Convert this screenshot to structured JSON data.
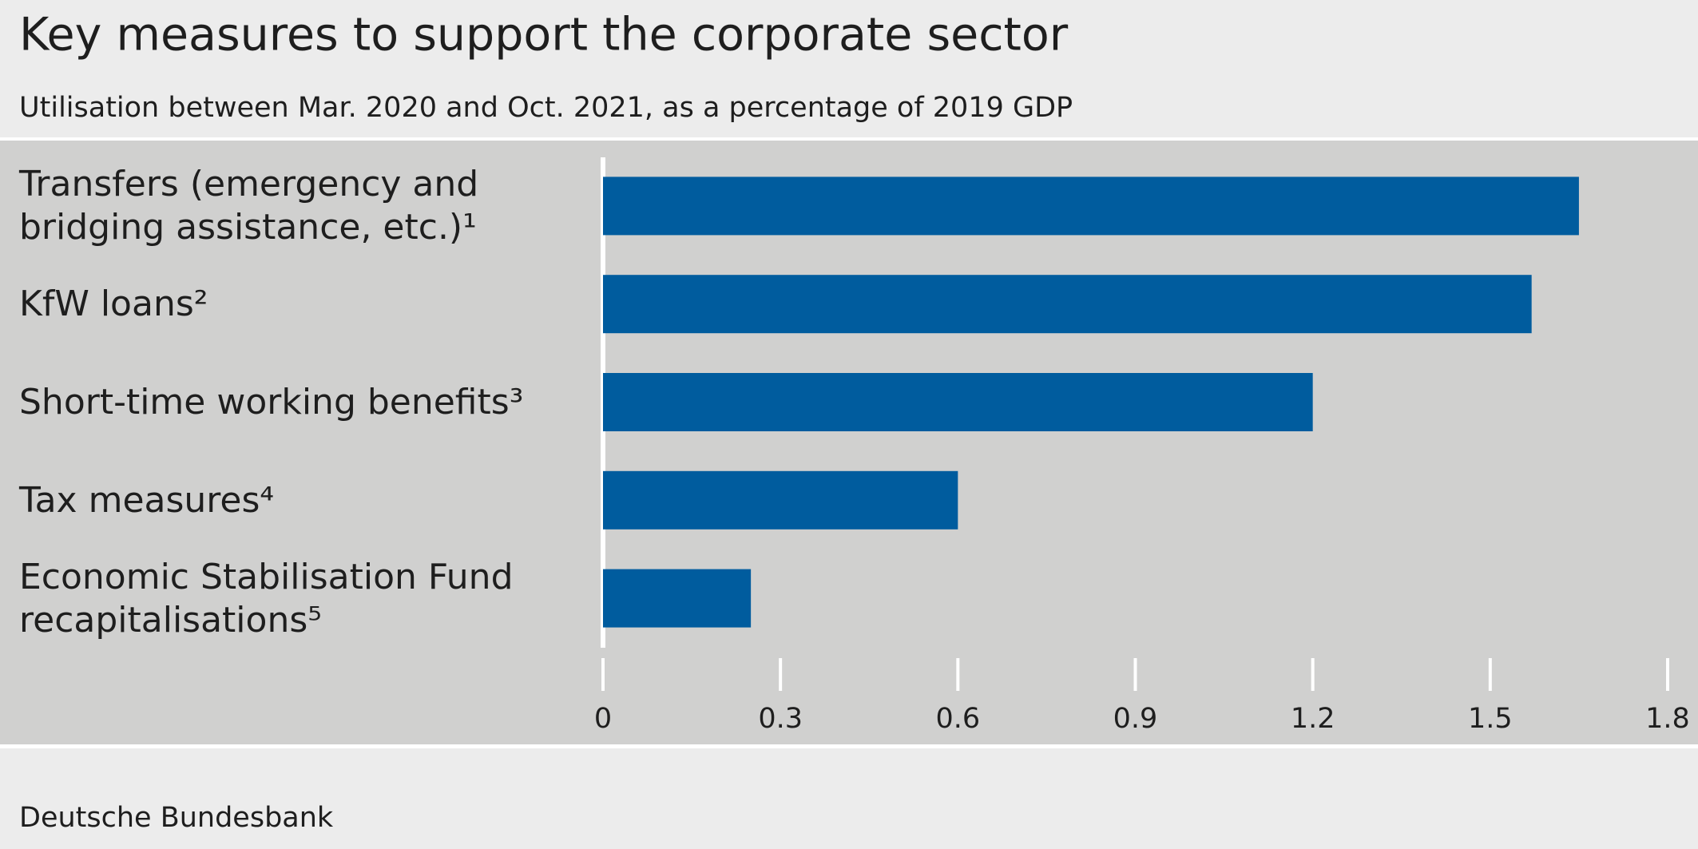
{
  "chart_data": {
    "type": "hbar",
    "title": "Key measures to support the corporate sector",
    "subtitle": "Utilisation between Mar. 2020 and Oct. 2021, as a percentage of 2019 GDP",
    "source": "Deutsche Bundesbank",
    "categories": [
      "Transfers (emergency and bridging assistance, etc.)¹",
      "KfW loans²",
      "Short-time working benefits³",
      "Tax measures⁴",
      "Economic Stabilisation Fund recapitalisations⁵"
    ],
    "values": [
      1.65,
      1.57,
      1.2,
      0.6,
      0.25
    ],
    "color": "#005c9e",
    "xlim": [
      0,
      1.8
    ],
    "xticks": [
      0,
      0.3,
      0.6,
      0.9,
      1.2,
      1.5,
      1.8
    ]
  }
}
